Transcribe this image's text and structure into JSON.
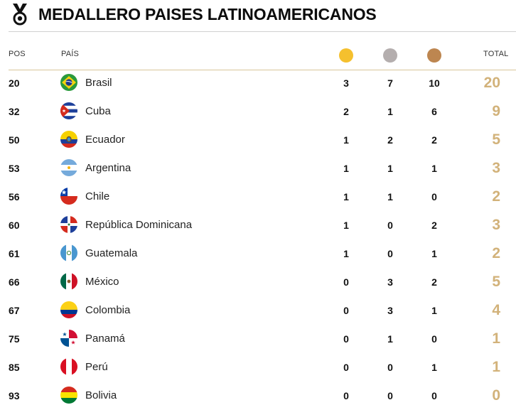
{
  "header": {
    "title": "MEDALLERO PAISES LATINOAMERICANOS",
    "icon": "medal-icon"
  },
  "columns": {
    "pos": "POS",
    "pais": "PAÍS",
    "total": "TOTAL",
    "medal_colors": {
      "gold": "#f5c02e",
      "silver": "#b4aeae",
      "bronze": "#bd8650"
    }
  },
  "rows": [
    {
      "pos": "20",
      "country": "Brasil",
      "flag": "flag-brasil-icon",
      "gold": "3",
      "silver": "7",
      "bronze": "10",
      "total": "20"
    },
    {
      "pos": "32",
      "country": "Cuba",
      "flag": "flag-cuba-icon",
      "gold": "2",
      "silver": "1",
      "bronze": "6",
      "total": "9"
    },
    {
      "pos": "50",
      "country": "Ecuador",
      "flag": "flag-ecuador-icon",
      "gold": "1",
      "silver": "2",
      "bronze": "2",
      "total": "5"
    },
    {
      "pos": "53",
      "country": "Argentina",
      "flag": "flag-argentina-icon",
      "gold": "1",
      "silver": "1",
      "bronze": "1",
      "total": "3"
    },
    {
      "pos": "56",
      "country": "Chile",
      "flag": "flag-chile-icon",
      "gold": "1",
      "silver": "1",
      "bronze": "0",
      "total": "2"
    },
    {
      "pos": "60",
      "country": "República Dominicana",
      "flag": "flag-republica-dominicana-icon",
      "gold": "1",
      "silver": "0",
      "bronze": "2",
      "total": "3"
    },
    {
      "pos": "61",
      "country": "Guatemala",
      "flag": "flag-guatemala-icon",
      "gold": "1",
      "silver": "0",
      "bronze": "1",
      "total": "2"
    },
    {
      "pos": "66",
      "country": "México",
      "flag": "flag-mexico-icon",
      "gold": "0",
      "silver": "3",
      "bronze": "2",
      "total": "5"
    },
    {
      "pos": "67",
      "country": "Colombia",
      "flag": "flag-colombia-icon",
      "gold": "0",
      "silver": "3",
      "bronze": "1",
      "total": "4"
    },
    {
      "pos": "75",
      "country": "Panamá",
      "flag": "flag-panama-icon",
      "gold": "0",
      "silver": "1",
      "bronze": "0",
      "total": "1"
    },
    {
      "pos": "85",
      "country": "Perú",
      "flag": "flag-peru-icon",
      "gold": "0",
      "silver": "0",
      "bronze": "1",
      "total": "1"
    },
    {
      "pos": "93",
      "country": "Bolivia",
      "flag": "flag-bolivia-icon",
      "gold": "0",
      "silver": "0",
      "bronze": "0",
      "total": "0"
    }
  ]
}
